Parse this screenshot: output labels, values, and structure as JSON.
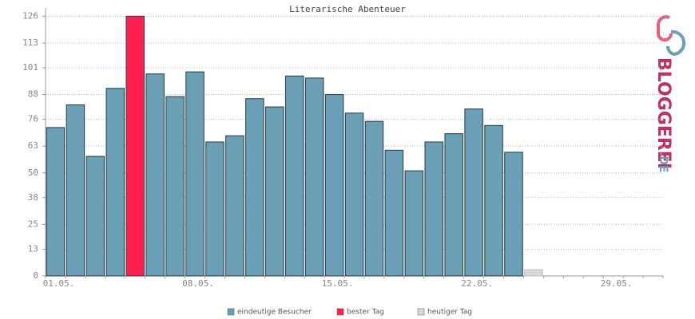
{
  "chart_data": {
    "type": "bar",
    "title": "Literarische Abenteuer",
    "categories": [
      "01.05.",
      null,
      null,
      null,
      null,
      null,
      null,
      "08.05.",
      null,
      null,
      null,
      null,
      null,
      null,
      "15.05.",
      null,
      null,
      null,
      null,
      null,
      null,
      "22.05.",
      null,
      null,
      null,
      null,
      null,
      null,
      "29.05.",
      null,
      null
    ],
    "series": [
      {
        "name": "eindeutige Besucher",
        "color": "#6a9fb5",
        "values": [
          72,
          83,
          58,
          91,
          null,
          98,
          87,
          99,
          65,
          68,
          86,
          82,
          97,
          96,
          88,
          79,
          75,
          61,
          51,
          65,
          69,
          81,
          73,
          60,
          null,
          null,
          null,
          null,
          null,
          null,
          null
        ]
      },
      {
        "name": "bester Tag",
        "color": "#ff2050",
        "values": [
          null,
          null,
          null,
          null,
          126,
          null,
          null,
          null,
          null,
          null,
          null,
          null,
          null,
          null,
          null,
          null,
          null,
          null,
          null,
          null,
          null,
          null,
          null,
          null,
          null,
          null,
          null,
          null,
          null,
          null,
          null
        ]
      },
      {
        "name": "heutiger Tag",
        "color": "#d8d8d8",
        "values": [
          null,
          null,
          null,
          null,
          null,
          null,
          null,
          null,
          null,
          null,
          null,
          null,
          null,
          null,
          null,
          null,
          null,
          null,
          null,
          null,
          null,
          null,
          null,
          null,
          3,
          null,
          null,
          null,
          null,
          null,
          null
        ]
      }
    ],
    "ylim": [
      0,
      130
    ],
    "yticks": [
      0,
      13,
      25,
      38,
      50,
      63,
      76,
      88,
      101,
      113,
      126
    ],
    "grid": true
  },
  "logo": {
    "main": "BLOGGEREI",
    "suffix": ".DE"
  }
}
